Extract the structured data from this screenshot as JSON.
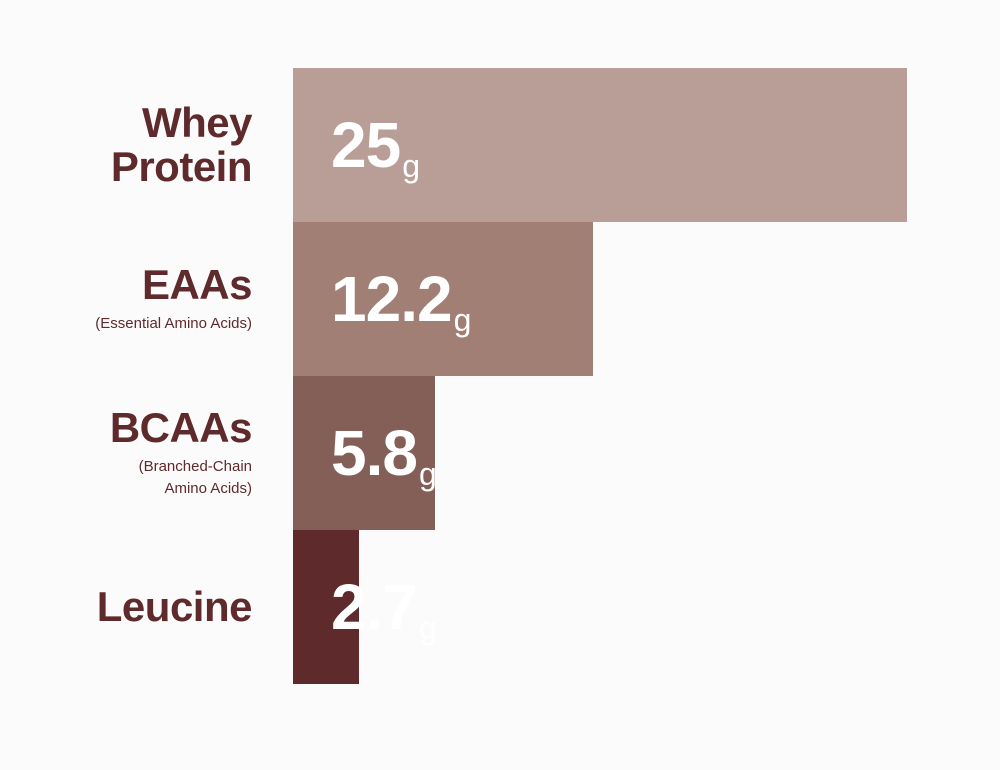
{
  "chart_data": {
    "type": "bar",
    "categories": [
      "Whey Protein",
      "EAAs",
      "BCAAs",
      "Leucine"
    ],
    "subtitles": [
      null,
      "(Essential Amino Acids)",
      "(Branched-Chain\nAmino Acids)",
      null
    ],
    "values": [
      25,
      12.2,
      5.8,
      2.7
    ],
    "unit": "g",
    "colors": [
      "#b89e97",
      "#a27f75",
      "#845f58",
      "#5e2a2c"
    ],
    "label_color": "#5e2a2c"
  }
}
